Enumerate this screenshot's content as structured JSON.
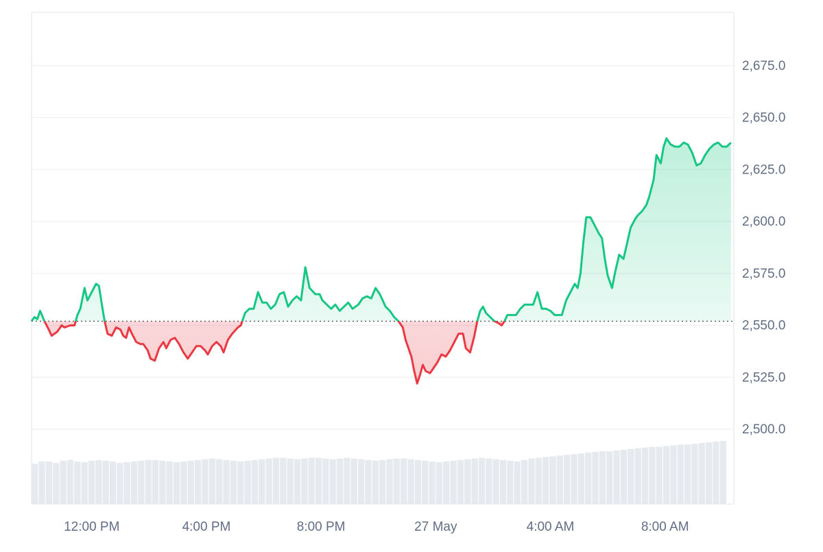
{
  "colors": {
    "up_line": "#16c784",
    "down_line": "#ea3943",
    "up_fill": "#16c784",
    "down_fill": "#ea3943",
    "grid": "#eef0f3",
    "axis_text": "#616e85",
    "volume": "#e6eaef",
    "baseline": "#555555",
    "frame": "#dfe3e8"
  },
  "chart_data": {
    "type": "area",
    "title": "",
    "xlabel": "",
    "ylabel": "",
    "ylim": [
      2500,
      2700
    ],
    "baseline": 2552,
    "grid": true,
    "y_ticks": [
      "2,500.0",
      "2,525.0",
      "2,550.0",
      "2,575.0",
      "2,600.0",
      "2,625.0",
      "2,650.0",
      "2,675.0"
    ],
    "x_ticks": [
      "12:00 PM",
      "4:00 PM",
      "8:00 PM",
      "27 May",
      "4:00 AM",
      "8:00 AM"
    ],
    "x_range_hours": [
      9.9,
      34.4
    ],
    "series": [
      {
        "points": [
          [
            9.9,
            2552
          ],
          [
            10.0,
            2554
          ],
          [
            10.1,
            2553
          ],
          [
            10.2,
            2557
          ],
          [
            10.35,
            2552
          ],
          [
            10.5,
            2548
          ],
          [
            10.6,
            2545
          ],
          [
            10.8,
            2547
          ],
          [
            10.95,
            2550
          ],
          [
            11.05,
            2549
          ],
          [
            11.25,
            2550
          ],
          [
            11.4,
            2550
          ],
          [
            11.5,
            2555
          ],
          [
            11.6,
            2558
          ],
          [
            11.75,
            2568
          ],
          [
            11.85,
            2562
          ],
          [
            12.0,
            2566
          ],
          [
            12.15,
            2570
          ],
          [
            12.25,
            2569
          ],
          [
            12.4,
            2556
          ],
          [
            12.45,
            2552
          ],
          [
            12.55,
            2546
          ],
          [
            12.7,
            2545
          ],
          [
            12.85,
            2549
          ],
          [
            13.0,
            2548
          ],
          [
            13.1,
            2545
          ],
          [
            13.2,
            2544
          ],
          [
            13.3,
            2549
          ],
          [
            13.4,
            2546
          ],
          [
            13.55,
            2542
          ],
          [
            13.7,
            2541
          ],
          [
            13.8,
            2541
          ],
          [
            13.95,
            2538
          ],
          [
            14.05,
            2534
          ],
          [
            14.2,
            2533
          ],
          [
            14.35,
            2539
          ],
          [
            14.5,
            2542
          ],
          [
            14.6,
            2539
          ],
          [
            14.75,
            2543
          ],
          [
            14.9,
            2544
          ],
          [
            15.05,
            2541
          ],
          [
            15.2,
            2537
          ],
          [
            15.35,
            2534
          ],
          [
            15.5,
            2537
          ],
          [
            15.65,
            2540
          ],
          [
            15.8,
            2540
          ],
          [
            15.95,
            2538
          ],
          [
            16.05,
            2536
          ],
          [
            16.2,
            2540
          ],
          [
            16.35,
            2542
          ],
          [
            16.5,
            2540
          ],
          [
            16.6,
            2537
          ],
          [
            16.75,
            2543
          ],
          [
            16.9,
            2546
          ],
          [
            17.1,
            2549
          ],
          [
            17.2,
            2550
          ],
          [
            17.35,
            2556
          ],
          [
            17.5,
            2558
          ],
          [
            17.65,
            2558
          ],
          [
            17.8,
            2566
          ],
          [
            17.95,
            2561
          ],
          [
            18.1,
            2561
          ],
          [
            18.25,
            2558
          ],
          [
            18.4,
            2560
          ],
          [
            18.55,
            2565
          ],
          [
            18.7,
            2566
          ],
          [
            18.85,
            2559
          ],
          [
            19.0,
            2562
          ],
          [
            19.15,
            2564
          ],
          [
            19.3,
            2562
          ],
          [
            19.45,
            2578
          ],
          [
            19.6,
            2568
          ],
          [
            19.8,
            2565
          ],
          [
            19.95,
            2565
          ],
          [
            20.05,
            2562
          ],
          [
            20.2,
            2560
          ],
          [
            20.35,
            2558
          ],
          [
            20.5,
            2560
          ],
          [
            20.65,
            2557
          ],
          [
            20.8,
            2559
          ],
          [
            20.95,
            2561
          ],
          [
            21.1,
            2558
          ],
          [
            21.3,
            2560
          ],
          [
            21.45,
            2563
          ],
          [
            21.6,
            2564
          ],
          [
            21.75,
            2563
          ],
          [
            21.9,
            2568
          ],
          [
            22.05,
            2565
          ],
          [
            22.25,
            2559
          ],
          [
            22.4,
            2557
          ],
          [
            22.55,
            2554
          ],
          [
            22.7,
            2552
          ],
          [
            22.85,
            2549
          ],
          [
            22.95,
            2543
          ],
          [
            23.15,
            2535
          ],
          [
            23.25,
            2528
          ],
          [
            23.35,
            2522
          ],
          [
            23.45,
            2526
          ],
          [
            23.55,
            2531
          ],
          [
            23.65,
            2528
          ],
          [
            23.8,
            2527
          ],
          [
            23.95,
            2530
          ],
          [
            24.05,
            2532
          ],
          [
            24.2,
            2536
          ],
          [
            24.35,
            2535
          ],
          [
            24.5,
            2538
          ],
          [
            24.65,
            2542
          ],
          [
            24.8,
            2546
          ],
          [
            24.95,
            2546
          ],
          [
            25.05,
            2539
          ],
          [
            25.2,
            2537
          ],
          [
            25.35,
            2545
          ],
          [
            25.45,
            2552
          ],
          [
            25.55,
            2557
          ],
          [
            25.65,
            2559
          ],
          [
            25.75,
            2556
          ],
          [
            25.9,
            2554
          ],
          [
            26.05,
            2552
          ],
          [
            26.2,
            2551
          ],
          [
            26.3,
            2550
          ],
          [
            26.4,
            2552
          ],
          [
            26.5,
            2555
          ],
          [
            26.65,
            2555
          ],
          [
            26.8,
            2555
          ],
          [
            26.95,
            2558
          ],
          [
            27.1,
            2560
          ],
          [
            27.25,
            2560
          ],
          [
            27.4,
            2560
          ],
          [
            27.55,
            2566
          ],
          [
            27.7,
            2558
          ],
          [
            27.85,
            2558
          ],
          [
            28.0,
            2557
          ],
          [
            28.15,
            2555
          ],
          [
            28.3,
            2555
          ],
          [
            28.4,
            2555
          ],
          [
            28.55,
            2562
          ],
          [
            28.7,
            2566
          ],
          [
            28.85,
            2570
          ],
          [
            28.95,
            2568
          ],
          [
            29.05,
            2575
          ],
          [
            29.15,
            2590
          ],
          [
            29.25,
            2602
          ],
          [
            29.4,
            2602
          ],
          [
            29.55,
            2598
          ],
          [
            29.7,
            2594
          ],
          [
            29.8,
            2592
          ],
          [
            29.9,
            2582
          ],
          [
            30.0,
            2574
          ],
          [
            30.15,
            2568
          ],
          [
            30.25,
            2575
          ],
          [
            30.4,
            2584
          ],
          [
            30.55,
            2582
          ],
          [
            30.65,
            2588
          ],
          [
            30.8,
            2597
          ],
          [
            30.95,
            2601
          ],
          [
            31.05,
            2603
          ],
          [
            31.2,
            2605
          ],
          [
            31.35,
            2608
          ],
          [
            31.45,
            2612
          ],
          [
            31.6,
            2620
          ],
          [
            31.7,
            2632
          ],
          [
            31.85,
            2628
          ],
          [
            31.95,
            2636
          ],
          [
            32.05,
            2640
          ],
          [
            32.2,
            2637
          ],
          [
            32.35,
            2636
          ],
          [
            32.5,
            2636
          ],
          [
            32.65,
            2638
          ],
          [
            32.8,
            2637
          ],
          [
            32.95,
            2633
          ],
          [
            33.1,
            2627
          ],
          [
            33.25,
            2628
          ],
          [
            33.4,
            2632
          ],
          [
            33.55,
            2635
          ],
          [
            33.7,
            2637
          ],
          [
            33.85,
            2638
          ],
          [
            34.0,
            2636
          ],
          [
            34.15,
            2636
          ],
          [
            34.3,
            2638
          ]
        ]
      }
    ],
    "volume_series": [
      0.55,
      0.58,
      0.58,
      0.56,
      0.59,
      0.6,
      0.58,
      0.57,
      0.59,
      0.6,
      0.59,
      0.58,
      0.56,
      0.57,
      0.58,
      0.59,
      0.6,
      0.6,
      0.59,
      0.58,
      0.57,
      0.58,
      0.59,
      0.6,
      0.61,
      0.62,
      0.61,
      0.6,
      0.59,
      0.58,
      0.59,
      0.6,
      0.61,
      0.62,
      0.63,
      0.63,
      0.62,
      0.61,
      0.62,
      0.63,
      0.63,
      0.62,
      0.61,
      0.62,
      0.63,
      0.62,
      0.61,
      0.6,
      0.59,
      0.6,
      0.61,
      0.62,
      0.62,
      0.61,
      0.6,
      0.59,
      0.58,
      0.57,
      0.58,
      0.59,
      0.6,
      0.61,
      0.62,
      0.63,
      0.62,
      0.61,
      0.6,
      0.59,
      0.58,
      0.6,
      0.62,
      0.63,
      0.64,
      0.65,
      0.66,
      0.67,
      0.68,
      0.69,
      0.7,
      0.71,
      0.72,
      0.72,
      0.73,
      0.74,
      0.75,
      0.76,
      0.77,
      0.78,
      0.78,
      0.79,
      0.8,
      0.81,
      0.81,
      0.82,
      0.83,
      0.84,
      0.85,
      0.86
    ]
  }
}
